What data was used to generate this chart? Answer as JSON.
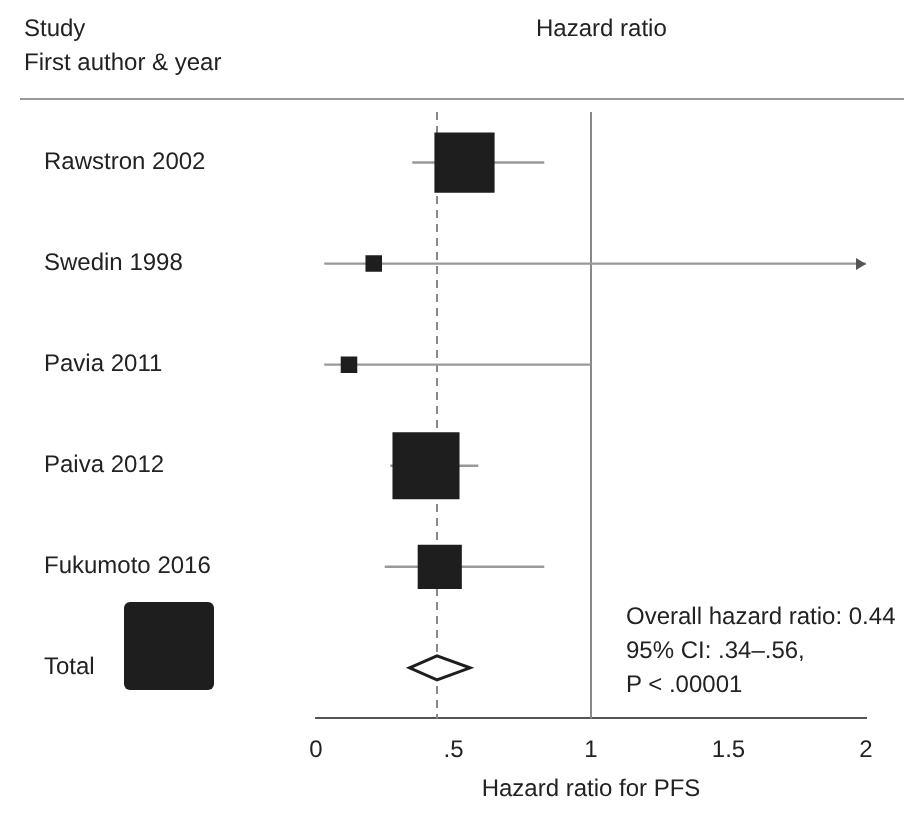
{
  "chart_data": {
    "type": "scatter",
    "title": "Hazard ratio",
    "ylabel": "Study\nFirst author & year",
    "xlabel": "Hazard ratio for PFS",
    "categories": [
      "Rawstron 2002",
      "Swedin 1998",
      "Pavia 2011",
      "Paiva 2012",
      "Fukumoto 2016",
      "Total"
    ],
    "orientation": "horizontal",
    "series": [
      {
        "type": "bubble",
        "marker": "square",
        "color": "#1e1e1e",
        "values": [
          0.54,
          0.21,
          0.12,
          0.4,
          0.45,
          null
        ],
        "sizes": [
          0.8,
          0.05,
          0.05,
          1,
          0.42,
          null
        ],
        "errors": [
          [
            0.35,
            0.83
          ],
          [
            0.03,
            2
          ],
          [
            0.03,
            1.0
          ],
          [
            0.27,
            0.59
          ],
          [
            0.25,
            0.83
          ],
          null
        ]
      },
      {
        "marker": "diamond",
        "color": "#1e1e1e",
        "values": [
          null,
          null,
          null,
          null,
          null,
          0.44
        ],
        "errors": [
          null,
          null,
          null,
          null,
          null,
          [
            0.34,
            0.56
          ]
        ]
      }
    ],
    "xlim": [
      0,
      2
    ],
    "xticks": [
      0,
      {
        "value": 0.5,
        "label": ".5"
      },
      1,
      1.5,
      2
    ],
    "ref_lines": [
      {
        "axis": "x",
        "value": 1,
        "color": "#888888",
        "line_style": "solid"
      },
      {
        "axis": "x",
        "value": 0.44,
        "color": "#888888",
        "line_style": "dashed"
      }
    ],
    "annotations": [
      "Overall hazard ratio: 0.44\n95% CI: .34–.56,\nP < .00001"
    ],
    "grid": false,
    "legend": false
  }
}
